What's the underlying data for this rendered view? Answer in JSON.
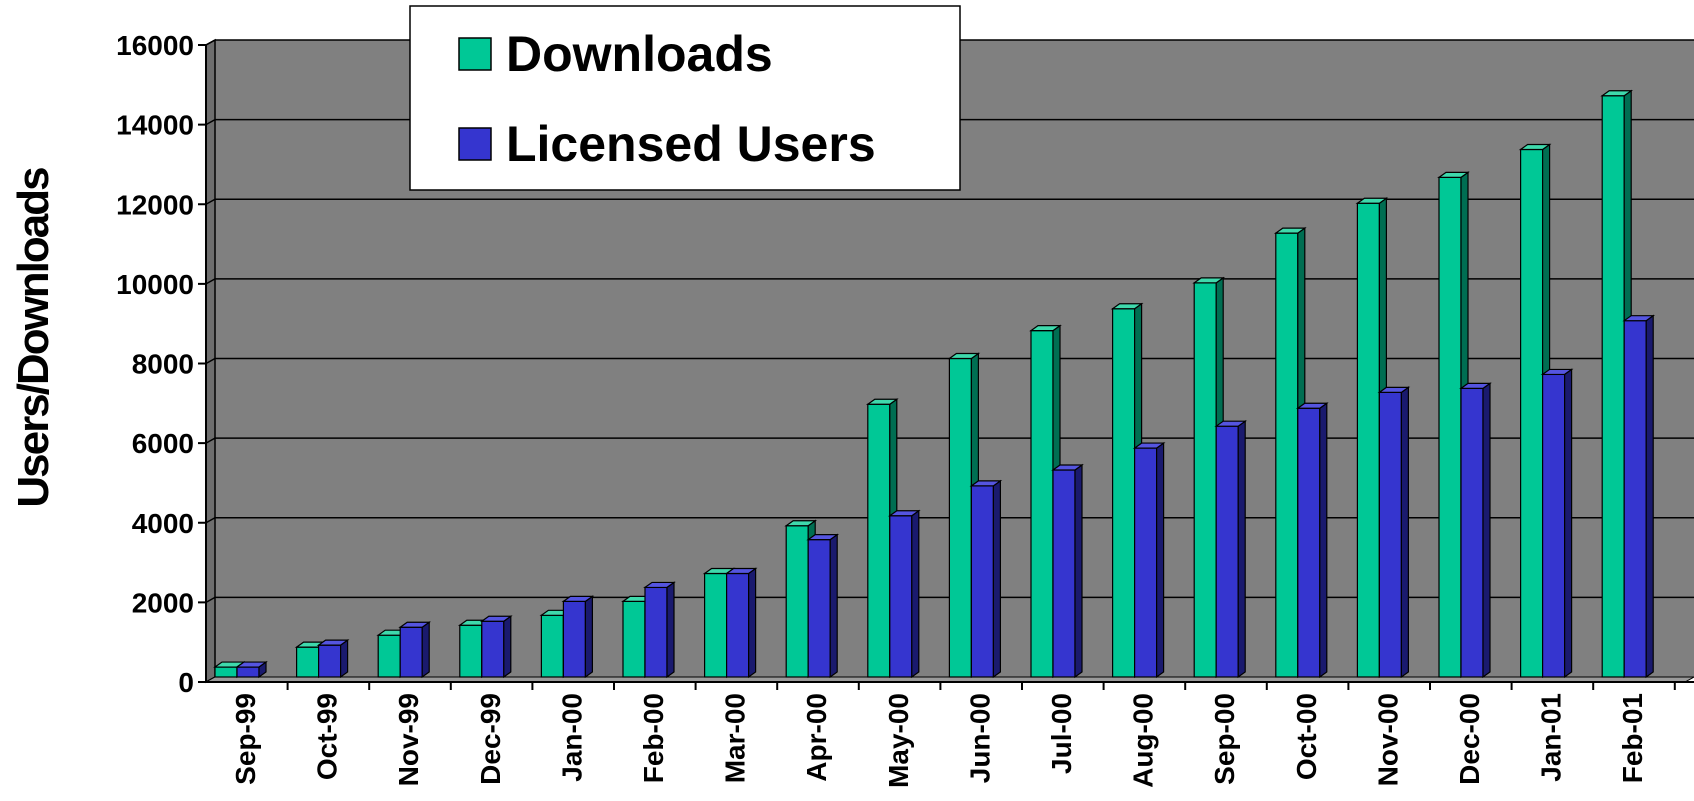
{
  "chart_data": {
    "type": "bar",
    "title": "",
    "xlabel": "",
    "ylabel": "Users/Downloads",
    "ylim": [
      0,
      16000
    ],
    "yticks": [
      "0",
      "2000",
      "4000",
      "6000",
      "8000",
      "10000",
      "12000",
      "14000",
      "16000"
    ],
    "grid": true,
    "legend_position": "top-left",
    "categories": [
      "Sep-99",
      "Oct-99",
      "Nov-99",
      "Dec-99",
      "Jan-00",
      "Feb-00",
      "Mar-00",
      "Apr-00",
      "May-00",
      "Jun-00",
      "Jul-00",
      "Aug-00",
      "Sep-00",
      "Oct-00",
      "Nov-00",
      "Dec-00",
      "Jan-01",
      "Feb-01"
    ],
    "series": [
      {
        "name": "Downloads",
        "color": "#00c896",
        "side_color": "#006e52",
        "top_color": "#3fd9ac",
        "values": [
          250,
          750,
          1050,
          1300,
          1550,
          1900,
          2600,
          3800,
          6850,
          8000,
          8700,
          9250,
          9900,
          11150,
          11900,
          12550,
          13250,
          14600
        ]
      },
      {
        "name": "Licensed Users",
        "color": "#3535cf",
        "side_color": "#1a1a6e",
        "top_color": "#5555e0",
        "values": [
          250,
          800,
          1250,
          1400,
          1900,
          2250,
          2600,
          3450,
          4050,
          4800,
          5200,
          5750,
          6300,
          6750,
          7150,
          7250,
          7600,
          8950
        ]
      }
    ],
    "plot_bg": "#808080",
    "grid_color": "#000000"
  }
}
